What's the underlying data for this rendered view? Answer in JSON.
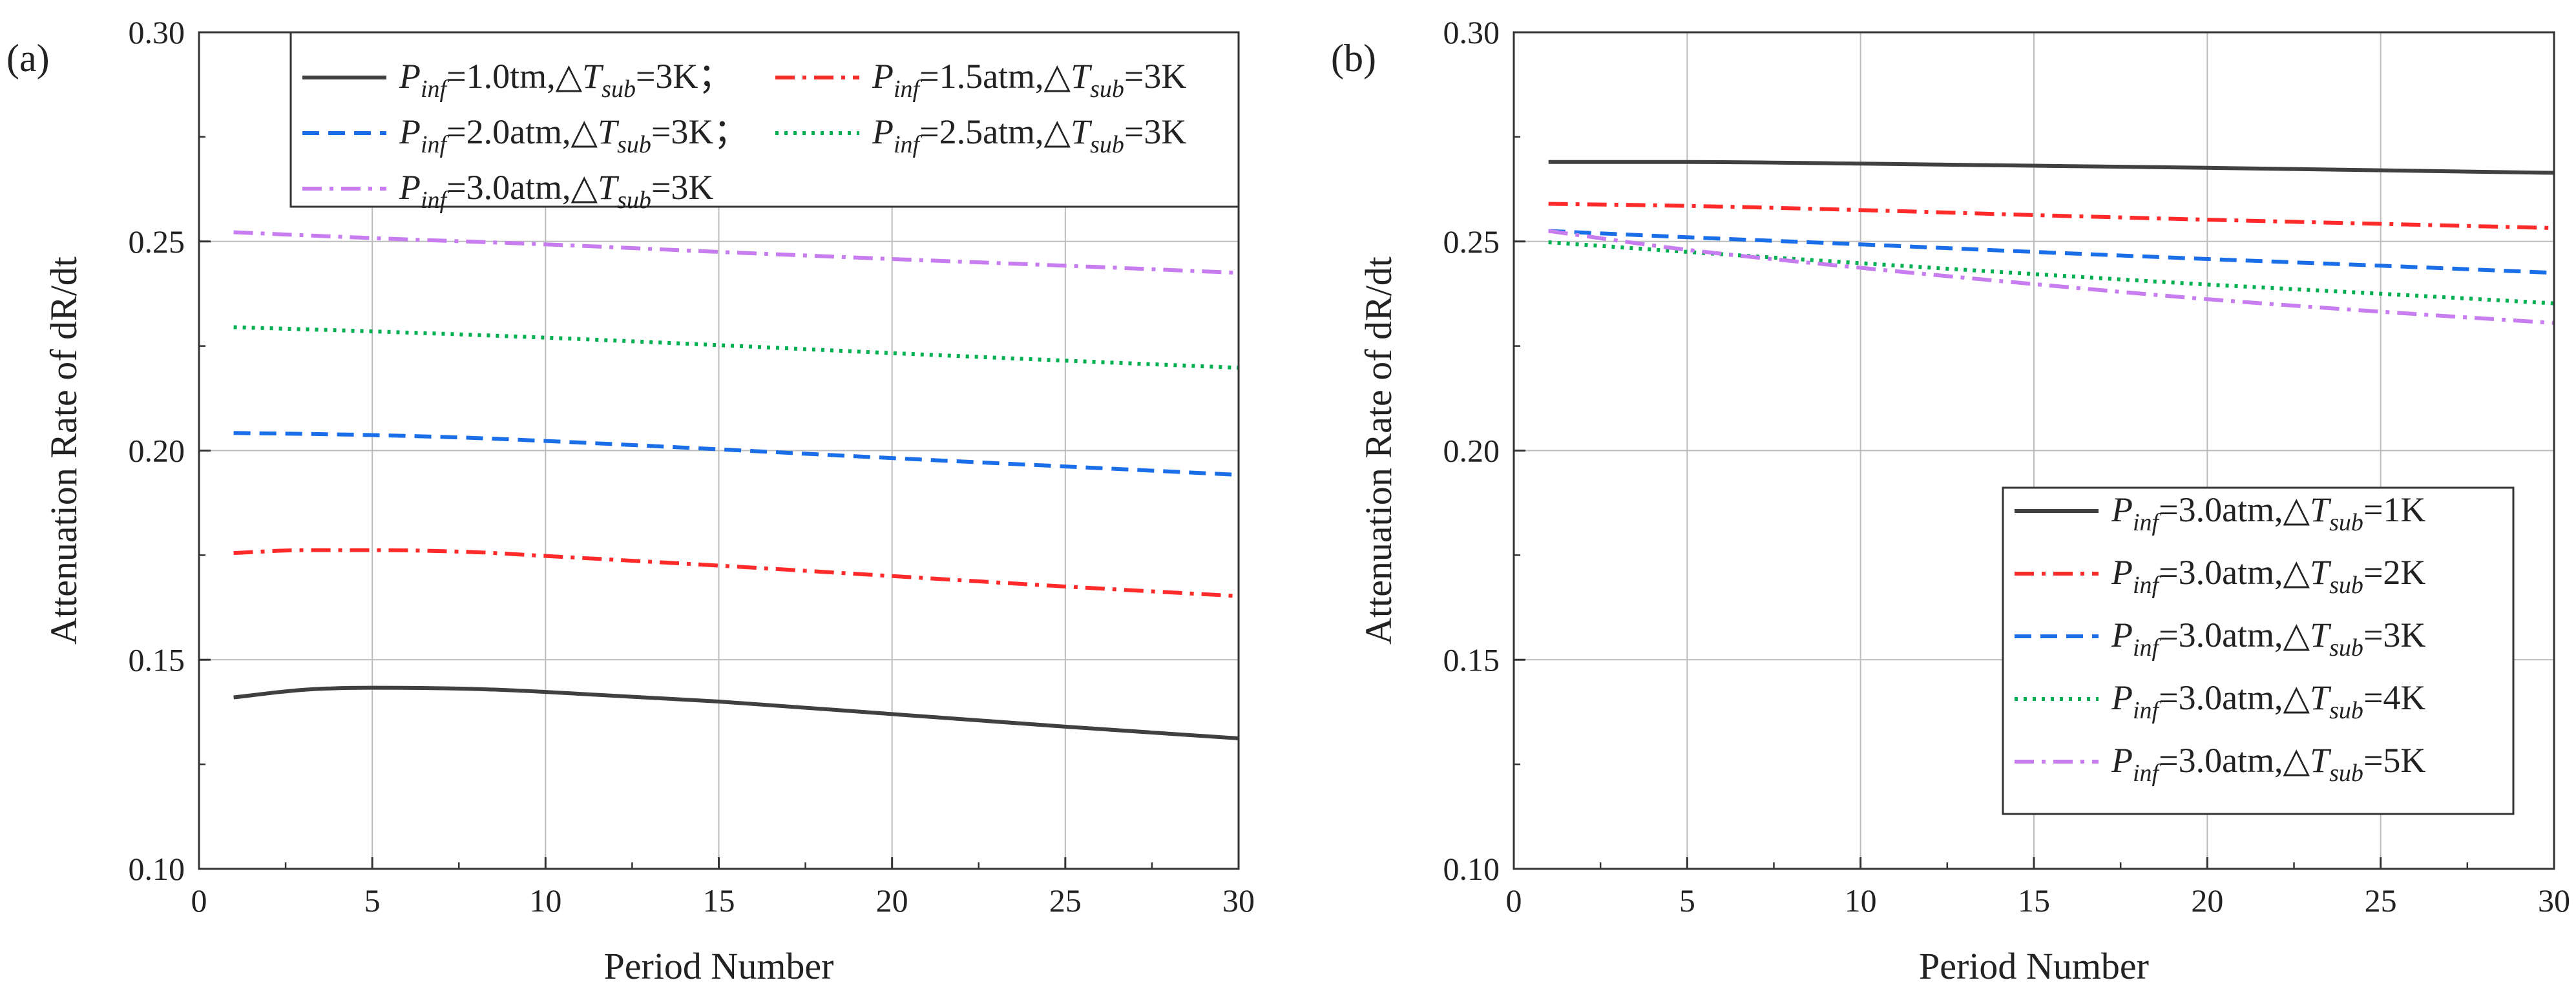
{
  "chart_data": [
    {
      "panel_label": "(a)",
      "type": "line",
      "xlabel": "Period Number",
      "ylabel": "Attenuation Rate of dR/dt",
      "xlim": [
        0,
        30
      ],
      "ylim": [
        0.1,
        0.3
      ],
      "xticks": [
        "0",
        "5",
        "10",
        "15",
        "20",
        "25",
        "30"
      ],
      "yticks": [
        "0.10",
        "0.15",
        "0.20",
        "0.25",
        "0.30"
      ],
      "grid": true,
      "legend_position": "top",
      "legend_columns": 2,
      "series": [
        {
          "name": "P_inf=1.0tm,△T_sub=3K；",
          "legend": {
            "pre": "=1.0tm,△",
            "post": "=3K；"
          },
          "color": "#404040",
          "style": "solid",
          "x": [
            1,
            3,
            5,
            8,
            10,
            15,
            20,
            25,
            30
          ],
          "y": [
            0.141,
            0.1428,
            0.1433,
            0.143,
            0.1423,
            0.14,
            0.137,
            0.134,
            0.1312
          ]
        },
        {
          "name": "P_inf=1.5atm,△T_sub=3K",
          "legend": {
            "pre": "=1.5atm,△",
            "post": "=3K"
          },
          "color": "#ff2a2a",
          "style": "dashdot",
          "x": [
            1,
            3,
            5,
            8,
            10,
            15,
            20,
            25,
            30
          ],
          "y": [
            0.1755,
            0.1762,
            0.1762,
            0.1757,
            0.1748,
            0.1725,
            0.17,
            0.1675,
            0.1652
          ]
        },
        {
          "name": "P_inf=2.0atm,△T_sub=3K；",
          "legend": {
            "pre": "=2.0atm,△",
            "post": "=3K；"
          },
          "color": "#1a6ee8",
          "style": "dash",
          "x": [
            1,
            3,
            5,
            8,
            10,
            15,
            20,
            25,
            30
          ],
          "y": [
            0.2042,
            0.204,
            0.2037,
            0.203,
            0.2023,
            0.2003,
            0.1982,
            0.1962,
            0.1942
          ]
        },
        {
          "name": "P_inf=2.5atm,△T_sub=3K",
          "legend": {
            "pre": "=2.5atm,△",
            "post": "=3K"
          },
          "color": "#00b050",
          "style": "dot",
          "x": [
            1,
            5,
            10,
            15,
            20,
            25,
            30
          ],
          "y": [
            0.2295,
            0.2285,
            0.227,
            0.2252,
            0.2233,
            0.2215,
            0.2198
          ]
        },
        {
          "name": "P_inf=3.0atm,△T_sub=3K",
          "legend": {
            "pre": "=3.0atm,△",
            "post": "=3K"
          },
          "color": "#c77df0",
          "style": "dashdot",
          "x": [
            1,
            5,
            10,
            15,
            20,
            25,
            30
          ],
          "y": [
            0.2522,
            0.2508,
            0.2493,
            0.2475,
            0.2458,
            0.2442,
            0.2425
          ]
        }
      ]
    },
    {
      "panel_label": "(b)",
      "type": "line",
      "xlabel": "Period Number",
      "ylabel": "Attenuation Rate of dR/dt",
      "xlim": [
        0,
        30
      ],
      "ylim": [
        0.1,
        0.3
      ],
      "xticks": [
        "0",
        "5",
        "10",
        "15",
        "20",
        "25",
        "30"
      ],
      "yticks": [
        "0.10",
        "0.15",
        "0.20",
        "0.25",
        "0.30"
      ],
      "grid": true,
      "legend_position": "bottom-right",
      "legend_columns": 1,
      "series": [
        {
          "name": "P_inf=3.0atm,△T_sub=1K",
          "legend": {
            "pre": "=3.0atm,△",
            "post": "=1K"
          },
          "color": "#404040",
          "style": "solid",
          "x": [
            1,
            5,
            10,
            15,
            20,
            25,
            30
          ],
          "y": [
            0.269,
            0.269,
            0.2686,
            0.2681,
            0.2676,
            0.267,
            0.2664
          ]
        },
        {
          "name": "P_inf=3.0atm,△T_sub=2K",
          "legend": {
            "pre": "=3.0atm,△",
            "post": "=2K"
          },
          "color": "#ff2a2a",
          "style": "dashdot",
          "x": [
            1,
            5,
            10,
            15,
            20,
            25,
            30
          ],
          "y": [
            0.259,
            0.2585,
            0.2575,
            0.2563,
            0.2552,
            0.2542,
            0.2532
          ]
        },
        {
          "name": "P_inf=3.0atm,△T_sub=3K",
          "legend": {
            "pre": "=3.0atm,△",
            "post": "=3K"
          },
          "color": "#1a6ee8",
          "style": "dash",
          "x": [
            1,
            5,
            10,
            15,
            20,
            25,
            30
          ],
          "y": [
            0.2525,
            0.251,
            0.2493,
            0.2475,
            0.2458,
            0.2442,
            0.2425
          ]
        },
        {
          "name": "P_inf=3.0atm,△T_sub=4K",
          "legend": {
            "pre": "=3.0atm,△",
            "post": "=4K"
          },
          "color": "#00b050",
          "style": "dot",
          "x": [
            1,
            5,
            10,
            15,
            20,
            25,
            30
          ],
          "y": [
            0.2498,
            0.2475,
            0.2448,
            0.2422,
            0.2397,
            0.2375,
            0.2352
          ]
        },
        {
          "name": "P_inf=3.0atm,△T_sub=5K",
          "legend": {
            "pre": "=3.0atm,△",
            "post": "=5K"
          },
          "color": "#c77df0",
          "style": "dashdot",
          "x": [
            1,
            5,
            10,
            15,
            20,
            25,
            30
          ],
          "y": [
            0.2525,
            0.248,
            0.2437,
            0.2398,
            0.2362,
            0.2332,
            0.2305
          ]
        }
      ]
    }
  ]
}
